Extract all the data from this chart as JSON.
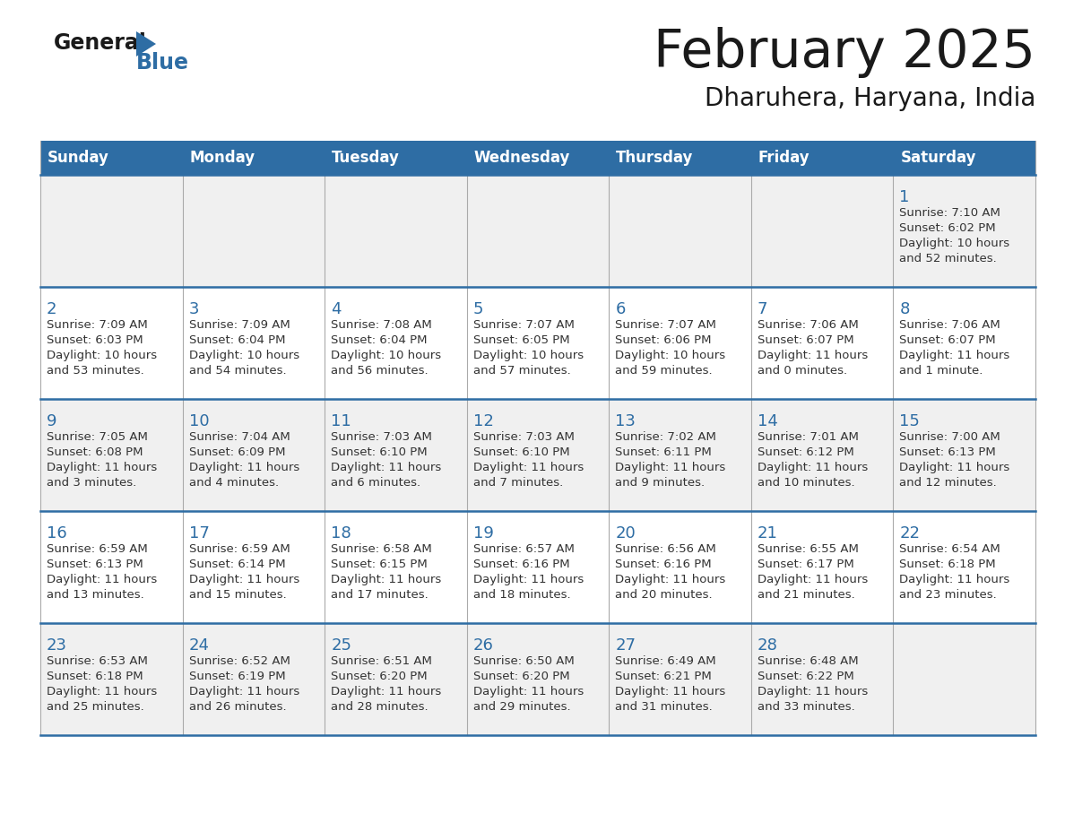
{
  "title": "February 2025",
  "subtitle": "Dharuhera, Haryana, India",
  "header_bg_color": "#2E6DA4",
  "header_text_color": "#FFFFFF",
  "cell_bg_color_week1": "#F0F0F0",
  "cell_bg_color_week2": "#FFFFFF",
  "cell_bg_color_week3": "#F0F0F0",
  "cell_bg_color_week4": "#FFFFFF",
  "cell_bg_color_week5": "#F0F0F0",
  "cell_text_color": "#333333",
  "day_number_color": "#2E6DA4",
  "separator_color": "#2E6DA4",
  "vert_line_color": "#AAAAAA",
  "days_of_week": [
    "Sunday",
    "Monday",
    "Tuesday",
    "Wednesday",
    "Thursday",
    "Friday",
    "Saturday"
  ],
  "weeks": [
    [
      {
        "day": null,
        "sunrise": null,
        "sunset": null,
        "daylight_line1": null,
        "daylight_line2": null
      },
      {
        "day": null,
        "sunrise": null,
        "sunset": null,
        "daylight_line1": null,
        "daylight_line2": null
      },
      {
        "day": null,
        "sunrise": null,
        "sunset": null,
        "daylight_line1": null,
        "daylight_line2": null
      },
      {
        "day": null,
        "sunrise": null,
        "sunset": null,
        "daylight_line1": null,
        "daylight_line2": null
      },
      {
        "day": null,
        "sunrise": null,
        "sunset": null,
        "daylight_line1": null,
        "daylight_line2": null
      },
      {
        "day": null,
        "sunrise": null,
        "sunset": null,
        "daylight_line1": null,
        "daylight_line2": null
      },
      {
        "day": 1,
        "sunrise": "7:10 AM",
        "sunset": "6:02 PM",
        "daylight_line1": "10 hours",
        "daylight_line2": "and 52 minutes."
      }
    ],
    [
      {
        "day": 2,
        "sunrise": "7:09 AM",
        "sunset": "6:03 PM",
        "daylight_line1": "10 hours",
        "daylight_line2": "and 53 minutes."
      },
      {
        "day": 3,
        "sunrise": "7:09 AM",
        "sunset": "6:04 PM",
        "daylight_line1": "10 hours",
        "daylight_line2": "and 54 minutes."
      },
      {
        "day": 4,
        "sunrise": "7:08 AM",
        "sunset": "6:04 PM",
        "daylight_line1": "10 hours",
        "daylight_line2": "and 56 minutes."
      },
      {
        "day": 5,
        "sunrise": "7:07 AM",
        "sunset": "6:05 PM",
        "daylight_line1": "10 hours",
        "daylight_line2": "and 57 minutes."
      },
      {
        "day": 6,
        "sunrise": "7:07 AM",
        "sunset": "6:06 PM",
        "daylight_line1": "10 hours",
        "daylight_line2": "and 59 minutes."
      },
      {
        "day": 7,
        "sunrise": "7:06 AM",
        "sunset": "6:07 PM",
        "daylight_line1": "11 hours",
        "daylight_line2": "and 0 minutes."
      },
      {
        "day": 8,
        "sunrise": "7:06 AM",
        "sunset": "6:07 PM",
        "daylight_line1": "11 hours",
        "daylight_line2": "and 1 minute."
      }
    ],
    [
      {
        "day": 9,
        "sunrise": "7:05 AM",
        "sunset": "6:08 PM",
        "daylight_line1": "11 hours",
        "daylight_line2": "and 3 minutes."
      },
      {
        "day": 10,
        "sunrise": "7:04 AM",
        "sunset": "6:09 PM",
        "daylight_line1": "11 hours",
        "daylight_line2": "and 4 minutes."
      },
      {
        "day": 11,
        "sunrise": "7:03 AM",
        "sunset": "6:10 PM",
        "daylight_line1": "11 hours",
        "daylight_line2": "and 6 minutes."
      },
      {
        "day": 12,
        "sunrise": "7:03 AM",
        "sunset": "6:10 PM",
        "daylight_line1": "11 hours",
        "daylight_line2": "and 7 minutes."
      },
      {
        "day": 13,
        "sunrise": "7:02 AM",
        "sunset": "6:11 PM",
        "daylight_line1": "11 hours",
        "daylight_line2": "and 9 minutes."
      },
      {
        "day": 14,
        "sunrise": "7:01 AM",
        "sunset": "6:12 PM",
        "daylight_line1": "11 hours",
        "daylight_line2": "and 10 minutes."
      },
      {
        "day": 15,
        "sunrise": "7:00 AM",
        "sunset": "6:13 PM",
        "daylight_line1": "11 hours",
        "daylight_line2": "and 12 minutes."
      }
    ],
    [
      {
        "day": 16,
        "sunrise": "6:59 AM",
        "sunset": "6:13 PM",
        "daylight_line1": "11 hours",
        "daylight_line2": "and 13 minutes."
      },
      {
        "day": 17,
        "sunrise": "6:59 AM",
        "sunset": "6:14 PM",
        "daylight_line1": "11 hours",
        "daylight_line2": "and 15 minutes."
      },
      {
        "day": 18,
        "sunrise": "6:58 AM",
        "sunset": "6:15 PM",
        "daylight_line1": "11 hours",
        "daylight_line2": "and 17 minutes."
      },
      {
        "day": 19,
        "sunrise": "6:57 AM",
        "sunset": "6:16 PM",
        "daylight_line1": "11 hours",
        "daylight_line2": "and 18 minutes."
      },
      {
        "day": 20,
        "sunrise": "6:56 AM",
        "sunset": "6:16 PM",
        "daylight_line1": "11 hours",
        "daylight_line2": "and 20 minutes."
      },
      {
        "day": 21,
        "sunrise": "6:55 AM",
        "sunset": "6:17 PM",
        "daylight_line1": "11 hours",
        "daylight_line2": "and 21 minutes."
      },
      {
        "day": 22,
        "sunrise": "6:54 AM",
        "sunset": "6:18 PM",
        "daylight_line1": "11 hours",
        "daylight_line2": "and 23 minutes."
      }
    ],
    [
      {
        "day": 23,
        "sunrise": "6:53 AM",
        "sunset": "6:18 PM",
        "daylight_line1": "11 hours",
        "daylight_line2": "and 25 minutes."
      },
      {
        "day": 24,
        "sunrise": "6:52 AM",
        "sunset": "6:19 PM",
        "daylight_line1": "11 hours",
        "daylight_line2": "and 26 minutes."
      },
      {
        "day": 25,
        "sunrise": "6:51 AM",
        "sunset": "6:20 PM",
        "daylight_line1": "11 hours",
        "daylight_line2": "and 28 minutes."
      },
      {
        "day": 26,
        "sunrise": "6:50 AM",
        "sunset": "6:20 PM",
        "daylight_line1": "11 hours",
        "daylight_line2": "and 29 minutes."
      },
      {
        "day": 27,
        "sunrise": "6:49 AM",
        "sunset": "6:21 PM",
        "daylight_line1": "11 hours",
        "daylight_line2": "and 31 minutes."
      },
      {
        "day": 28,
        "sunrise": "6:48 AM",
        "sunset": "6:22 PM",
        "daylight_line1": "11 hours",
        "daylight_line2": "and 33 minutes."
      },
      {
        "day": null,
        "sunrise": null,
        "sunset": null,
        "daylight_line1": null,
        "daylight_line2": null
      }
    ]
  ],
  "logo_color": "#2E6DA4",
  "logo_dark_color": "#1a1a1a"
}
